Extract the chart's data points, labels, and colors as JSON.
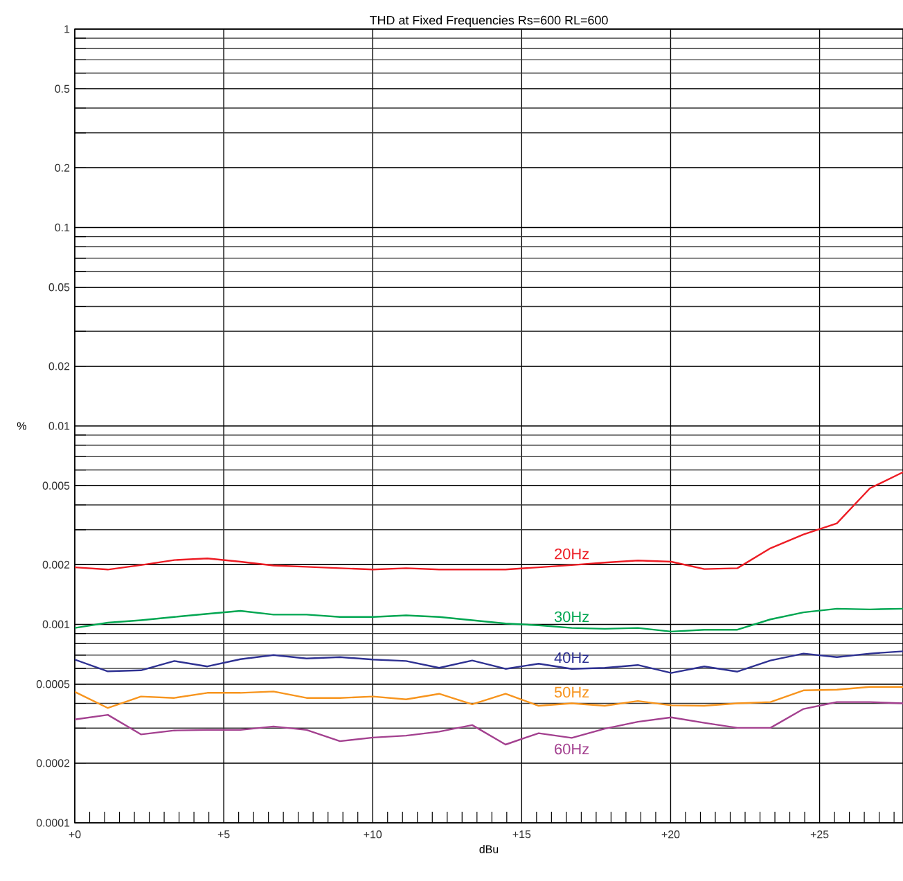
{
  "chart_data": {
    "type": "line",
    "title": "THD at Fixed Frequencies Rs=600 RL=600",
    "xlabel": "dBu",
    "ylabel": "%",
    "x": [
      0,
      1.11,
      2.22,
      3.34,
      4.45,
      5.56,
      6.67,
      7.78,
      8.9,
      10.01,
      11.12,
      12.23,
      13.34,
      14.46,
      15.57,
      16.68,
      17.79,
      18.9,
      20.02,
      21.13,
      22.24,
      23.35,
      24.46,
      25.58,
      26.69,
      27.8
    ],
    "series": [
      {
        "name": "20Hz",
        "color": "#ed1c24",
        "values": [
          0.00194,
          0.00189,
          0.00199,
          0.00211,
          0.00215,
          0.00207,
          0.00198,
          0.00195,
          0.00192,
          0.00189,
          0.00192,
          0.00189,
          0.00189,
          0.00189,
          0.00194,
          0.00199,
          0.00205,
          0.0021,
          0.00207,
          0.0019,
          0.00192,
          0.00242,
          0.00284,
          0.00323,
          0.00485,
          0.00585
        ]
      },
      {
        "name": "30Hz",
        "color": "#00a651",
        "values": [
          0.00096,
          0.00102,
          0.00105,
          0.00109,
          0.00113,
          0.00117,
          0.00112,
          0.00112,
          0.00109,
          0.00109,
          0.00111,
          0.00109,
          0.00105,
          0.00101,
          0.00099,
          0.00096,
          0.00095,
          0.00096,
          0.00092,
          0.00094,
          0.00094,
          0.00106,
          0.00115,
          0.0012,
          0.00119,
          0.0012
        ]
      },
      {
        "name": "40Hz",
        "color": "#2e3192",
        "values": [
          0.000665,
          0.00058,
          0.000587,
          0.000654,
          0.000614,
          0.000668,
          0.000701,
          0.000673,
          0.000684,
          0.000665,
          0.000654,
          0.000604,
          0.000658,
          0.000597,
          0.000634,
          0.000597,
          0.000604,
          0.000624,
          0.000569,
          0.000614,
          0.000578,
          0.000658,
          0.000713,
          0.000684,
          0.000713,
          0.000732
        ]
      },
      {
        "name": "50Hz",
        "color": "#f7941d",
        "values": [
          0.000457,
          0.000379,
          0.000433,
          0.000426,
          0.000452,
          0.000452,
          0.000459,
          0.000426,
          0.000426,
          0.000433,
          0.000419,
          0.000447,
          0.000396,
          0.000447,
          0.000389,
          0.0004,
          0.000389,
          0.000411,
          0.000391,
          0.000389,
          0.0004,
          0.000406,
          0.000465,
          0.000469,
          0.000484,
          0.000484
        ]
      },
      {
        "name": "60Hz",
        "color": "#a3408f",
        "values": [
          0.000332,
          0.00035,
          0.000279,
          0.000292,
          0.000294,
          0.000294,
          0.000306,
          0.000294,
          0.000258,
          0.000269,
          0.000275,
          0.000288,
          0.000311,
          0.000248,
          0.000283,
          0.000268,
          0.000298,
          0.000323,
          0.00034,
          0.000319,
          0.000301,
          0.000301,
          0.000375,
          0.000406,
          0.000406,
          0.0004
        ]
      }
    ],
    "xlim": [
      0,
      27.8
    ],
    "xticks": [
      {
        "value": 0,
        "label": "+0"
      },
      {
        "value": 5,
        "label": "+5"
      },
      {
        "value": 10,
        "label": "+10"
      },
      {
        "value": 15,
        "label": "+15"
      },
      {
        "value": 20,
        "label": "+20"
      },
      {
        "value": 25,
        "label": "+25"
      },
      {
        "value": 0.5,
        "label": null
      },
      {
        "value": 1,
        "label": null
      },
      {
        "value": 1.5,
        "label": null
      },
      {
        "value": 2,
        "label": null
      },
      {
        "value": 2.5,
        "label": null
      },
      {
        "value": 3,
        "label": null
      },
      {
        "value": 3.5,
        "label": null
      },
      {
        "value": 4,
        "label": null
      },
      {
        "value": 4.5,
        "label": null
      },
      {
        "value": 5.5,
        "label": null
      },
      {
        "value": 6,
        "label": null
      },
      {
        "value": 6.5,
        "label": null
      },
      {
        "value": 7,
        "label": null
      },
      {
        "value": 7.5,
        "label": null
      },
      {
        "value": 8,
        "label": null
      },
      {
        "value": 8.5,
        "label": null
      },
      {
        "value": 9,
        "label": null
      },
      {
        "value": 9.5,
        "label": null
      },
      {
        "value": 10.5,
        "label": null
      },
      {
        "value": 11,
        "label": null
      },
      {
        "value": 11.5,
        "label": null
      },
      {
        "value": 12,
        "label": null
      },
      {
        "value": 12.5,
        "label": null
      },
      {
        "value": 13,
        "label": null
      },
      {
        "value": 13.5,
        "label": null
      },
      {
        "value": 14,
        "label": null
      },
      {
        "value": 14.5,
        "label": null
      },
      {
        "value": 15.5,
        "label": null
      },
      {
        "value": 16,
        "label": null
      },
      {
        "value": 16.5,
        "label": null
      },
      {
        "value": 17,
        "label": null
      },
      {
        "value": 17.5,
        "label": null
      },
      {
        "value": 18,
        "label": null
      },
      {
        "value": 18.5,
        "label": null
      },
      {
        "value": 19,
        "label": null
      },
      {
        "value": 19.5,
        "label": null
      },
      {
        "value": 20.5,
        "label": null
      },
      {
        "value": 21,
        "label": null
      },
      {
        "value": 21.5,
        "label": null
      },
      {
        "value": 22,
        "label": null
      },
      {
        "value": 22.5,
        "label": null
      },
      {
        "value": 23,
        "label": null
      },
      {
        "value": 23.5,
        "label": null
      },
      {
        "value": 24,
        "label": null
      },
      {
        "value": 24.5,
        "label": null
      },
      {
        "value": 25.5,
        "label": null
      },
      {
        "value": 26,
        "label": null
      },
      {
        "value": 26.5,
        "label": null
      },
      {
        "value": 27,
        "label": null
      },
      {
        "value": 27.5,
        "label": null
      }
    ],
    "ylim": [
      0.0001,
      1
    ],
    "yticks": [
      0.0001,
      0.0002,
      0.0005,
      0.001,
      0.002,
      0.005,
      0.01,
      0.02,
      0.05,
      0.1,
      0.2,
      0.5,
      1
    ],
    "log": "y",
    "grid": true,
    "legend": false,
    "marker": "none",
    "line_style": "solid"
  }
}
